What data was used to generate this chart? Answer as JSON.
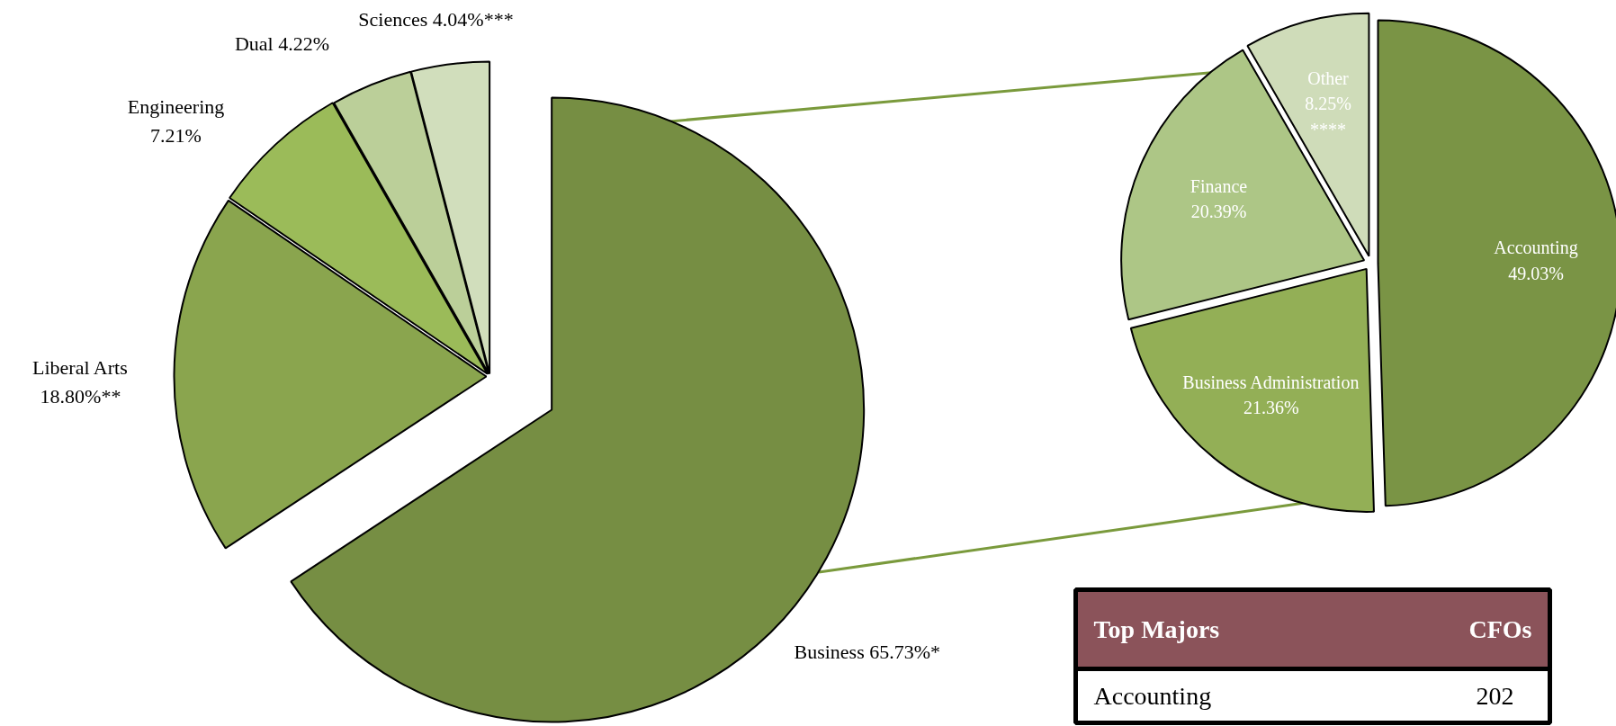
{
  "chart_data": [
    {
      "type": "pie",
      "categories": [
        "Business",
        "Liberal Arts",
        "Engineering",
        "Dual",
        "Sciences"
      ],
      "values": [
        65.73,
        18.8,
        7.21,
        4.22,
        4.04
      ],
      "value_labels": [
        "65.73%*",
        "18.80%**",
        "7.21%",
        "4.22%",
        "4.04%***"
      ],
      "colors": [
        "#768e43",
        "#8aa54e",
        "#9bbb59",
        "#bbcf99",
        "#d1debc"
      ]
    },
    {
      "type": "pie",
      "categories": [
        "Accounting",
        "Business Administration",
        "Finance",
        "Other"
      ],
      "values": [
        49.03,
        21.36,
        20.39,
        8.25
      ],
      "value_labels": [
        "49.03%",
        "21.36%",
        "20.39%",
        "8.25% ****"
      ],
      "colors": [
        "#7a9445",
        "#93af56",
        "#adc686",
        "#cfdcb9"
      ]
    },
    {
      "type": "other",
      "annotations": [
        "Top Majors",
        "CFOs"
      ],
      "categories": [
        "Accounting"
      ],
      "values": [
        202
      ],
      "data_labels": true
    }
  ]
}
